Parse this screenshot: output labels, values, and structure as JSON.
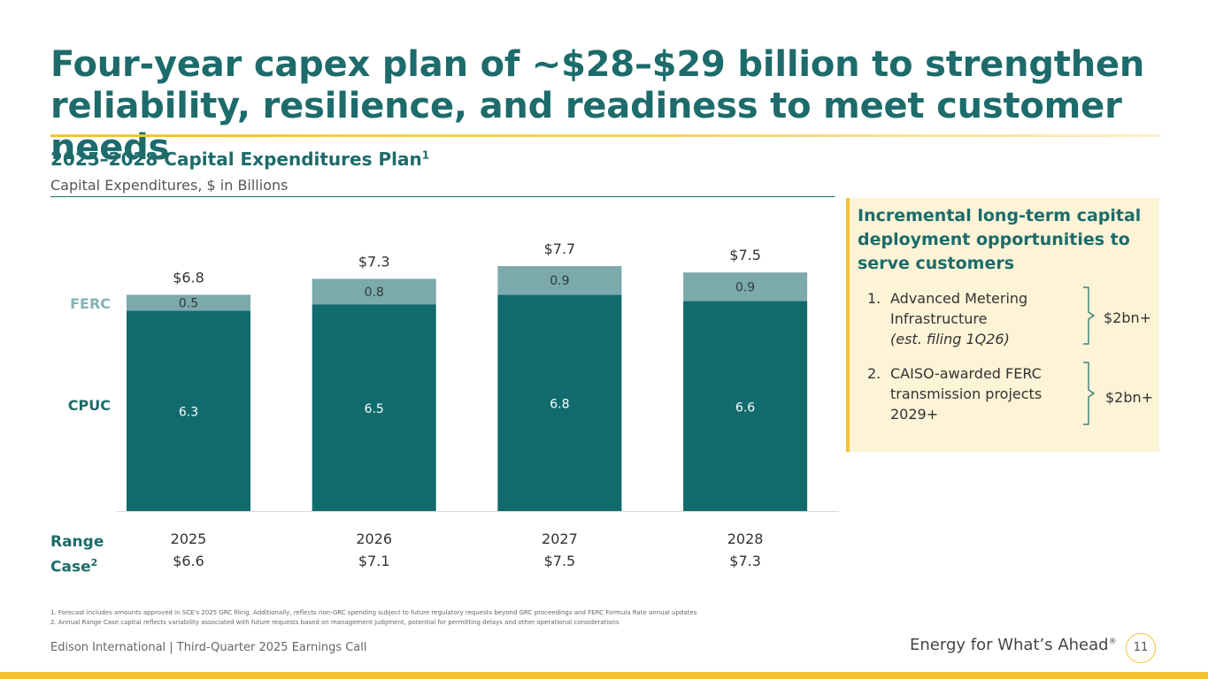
{
  "slide": {
    "title": "Four-year capex plan of ~$28–$29 billion to strengthen\nreliability, resilience, and readiness to meet customer needs",
    "chart_heading": "2025–2028 Capital Expenditures Plan",
    "chart_heading_footnote": "1",
    "chart_subheading": "Capital Expenditures, $ in Billions",
    "row_labels": {
      "ferc": "FERC",
      "cpuc": "CPUC"
    },
    "range_case": {
      "label_line1": "Range",
      "label_line2": "Case",
      "footnote": "2"
    },
    "footnotes": [
      "1.  Forecast includes amounts approved in SCE's 2025 GRC filing. Additionally, reflects non-GRC spending subject to future regulatory requests beyond GRC proceedings and FERC Formula Rate annual updates",
      "2.  Annual Range Case capital reflects variability associated with future requests based on management judgment, potential for permitting delays and other operational considerations"
    ],
    "footer_left": "Edison International |  Third-Quarter 2025 Earnings Call",
    "tagline": "Energy for What’s Ahead",
    "tagline_mark": "®",
    "page_number": "11"
  },
  "callout": {
    "title": "Incremental long-term capital deployment opportunities to serve customers",
    "items": [
      {
        "number": "1.",
        "text": "Advanced Metering Infrastructure",
        "note": "(est. filing 1Q26)",
        "amount": "$2bn+"
      },
      {
        "number": "2.",
        "text": "CAISO-awarded FERC transmission projects 2029+",
        "note": "",
        "amount": "$2bn+"
      }
    ]
  },
  "colors": {
    "accent_teal": "#1d6b6b",
    "cpuc_bar": "#116a6c",
    "ferc_bar": "#7ca9ab",
    "gold": "#f2c232",
    "callout_bg": "#fdf3d6"
  },
  "chart_data": {
    "type": "bar",
    "stacked": true,
    "categories": [
      "2025",
      "2026",
      "2027",
      "2028"
    ],
    "series": [
      {
        "name": "CPUC",
        "values": [
          6.3,
          6.5,
          6.8,
          6.6
        ],
        "color": "#116a6c"
      },
      {
        "name": "FERC",
        "values": [
          0.5,
          0.8,
          0.9,
          0.9
        ],
        "color": "#7ca9ab"
      }
    ],
    "totals": [
      "$6.8",
      "$7.3",
      "$7.7",
      "$7.5"
    ],
    "range_case": [
      "$6.6",
      "$7.1",
      "$7.5",
      "$7.3"
    ],
    "ylim": [
      0,
      7.7
    ],
    "grid": false,
    "legend": "left row labels"
  }
}
